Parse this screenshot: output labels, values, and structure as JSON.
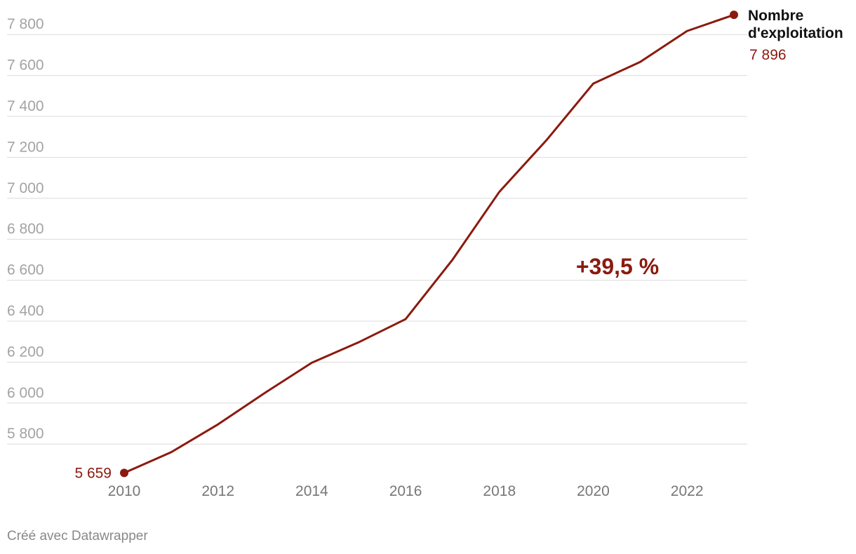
{
  "chart_data": {
    "type": "line",
    "x": [
      2010,
      2011,
      2012,
      2013,
      2014,
      2015,
      2016,
      2017,
      2018,
      2019,
      2020,
      2021,
      2022,
      2023
    ],
    "series": [
      {
        "name": "Nombre d'exploitation",
        "color": "#8b1a0e",
        "values": [
          5659,
          5760,
          5896,
          6050,
          6197,
          6297,
          6410,
          6700,
          7032,
          7283,
          7560,
          7666,
          7817,
          7896
        ],
        "value_labels": [
          "5 659",
          null,
          null,
          null,
          null,
          null,
          null,
          null,
          null,
          null,
          null,
          null,
          null,
          "7 896"
        ]
      }
    ],
    "xlim": [
      2010,
      2023
    ],
    "xticks": [
      2010,
      2012,
      2014,
      2016,
      2018,
      2020,
      2022
    ],
    "ylim": [
      5650,
      7900
    ],
    "yticks": [
      {
        "value": 5800,
        "label": "5 800"
      },
      {
        "value": 6000,
        "label": "6 000"
      },
      {
        "value": 6200,
        "label": "6 200"
      },
      {
        "value": 6400,
        "label": "6 400"
      },
      {
        "value": 6600,
        "label": "6 600"
      },
      {
        "value": 6800,
        "label": "6 800"
      },
      {
        "value": 7000,
        "label": "7 000"
      },
      {
        "value": 7200,
        "label": "7 200"
      },
      {
        "value": 7400,
        "label": "7 400"
      },
      {
        "value": 7600,
        "label": "7 600"
      },
      {
        "value": 7800,
        "label": "7 800"
      }
    ],
    "grid": true,
    "annotation": "+39,5 %",
    "source": "Créé avec Datawrapper"
  }
}
